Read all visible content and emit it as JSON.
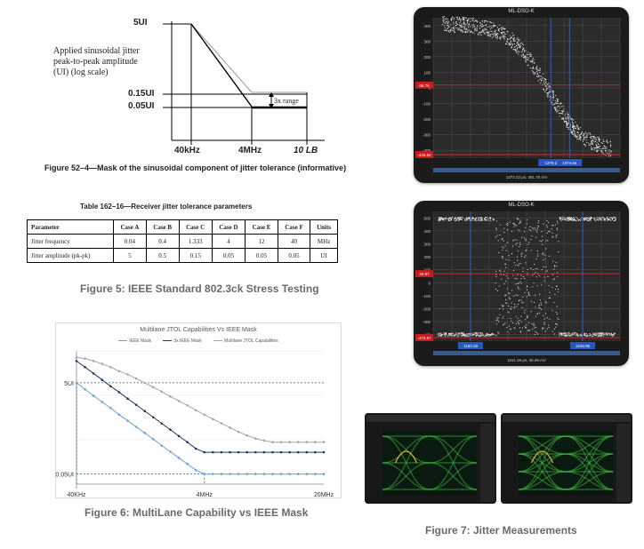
{
  "mask_figure": {
    "ylabel_lines": [
      "Applied sinusoidal jitter",
      "peak-to-peak amplitude",
      "(UI) (log scale)"
    ],
    "y_ticks": [
      "5UI",
      "0.15UI",
      "0.05UI"
    ],
    "x_ticks": [
      "40kHz",
      "4MHz",
      "10 LB"
    ],
    "annotation": "3x range",
    "caption": "Figure 52–4—Mask of the sinusoidal component of jitter tolerance (informative)"
  },
  "table": {
    "title": "Table 162–16—Receiver jitter tolerance parameters",
    "headers": [
      "Parameter",
      "Case A",
      "Case B",
      "Case C",
      "Case D",
      "Case E",
      "Case F",
      "Units"
    ],
    "rows": [
      [
        "Jitter frequency",
        "0.04",
        "0.4",
        "1.333",
        "4",
        "12",
        "40",
        "MHz"
      ],
      [
        "Jitter amplitude (pk-pk)",
        "5",
        "0.5",
        "0.15",
        "0.05",
        "0.05",
        "0.05",
        "UI"
      ]
    ]
  },
  "captions": {
    "fig5": "Figure 5: IEEE Standard 802.3ck Stress Testing",
    "fig6": "Figure 6: MultiLane Capability vs IEEE Mask",
    "fig7": "Figure 7: Jitter Measurements"
  },
  "chart_data": {
    "type": "line",
    "title": "Multilane JTOL Capabilities Vs IEEE Mask",
    "x_tick_labels": [
      "40KHz",
      "4MHz",
      "20MHz"
    ],
    "y_tick_labels": [
      "5UI",
      "0.05UI"
    ],
    "x": [
      1,
      2,
      3,
      4,
      5,
      6,
      7,
      8,
      9,
      10,
      11,
      12,
      13,
      14,
      15,
      16,
      17,
      18,
      19,
      20,
      21,
      22,
      23,
      24,
      25,
      26,
      27,
      28,
      29,
      30
    ],
    "series": [
      {
        "name": "IEEE Mask",
        "color": "#6f9fd8",
        "values": [
          5,
          3.6,
          2.6,
          1.9,
          1.4,
          1.0,
          0.74,
          0.54,
          0.4,
          0.29,
          0.21,
          0.155,
          0.113,
          0.083,
          0.061,
          0.05,
          0.05,
          0.05,
          0.05,
          0.05,
          0.05,
          0.05,
          0.05,
          0.05,
          0.05,
          0.05,
          0.05,
          0.05,
          0.05,
          0.05
        ]
      },
      {
        "name": "3x IEEE Mask",
        "color": "#1f3864",
        "values": [
          15,
          11,
          8,
          5.8,
          4.2,
          3.1,
          2.25,
          1.65,
          1.2,
          0.88,
          0.64,
          0.47,
          0.34,
          0.25,
          0.18,
          0.15,
          0.15,
          0.15,
          0.15,
          0.15,
          0.15,
          0.15,
          0.15,
          0.15,
          0.15,
          0.15,
          0.15,
          0.15,
          0.15,
          0.15
        ]
      },
      {
        "name": "Multilane JTOL Capabilities",
        "color": "#a6a6a6",
        "values": [
          18,
          17,
          15,
          13,
          11,
          9,
          7.6,
          6.2,
          5,
          4,
          3.2,
          2.5,
          2,
          1.6,
          1.25,
          1.0,
          0.8,
          0.65,
          0.52,
          0.42,
          0.35,
          0.3,
          0.27,
          0.25,
          0.25,
          0.25,
          0.25,
          0.25,
          0.25,
          0.25
        ]
      }
    ]
  },
  "scopes": [
    {
      "title": "ML-DSO-K",
      "y_ticks": [
        "400",
        "300",
        "200",
        "100",
        "0",
        "-100",
        "-200",
        "-300",
        "-400"
      ],
      "red_labels": [
        "68.76",
        "-444.60"
      ],
      "blue_labels": [
        "1370.2",
        "1374.54"
      ],
      "footer": "1372.22 ps, 351.75 mV"
    },
    {
      "title": "ML-DSO-K",
      "y_ticks": [
        "500",
        "400",
        "300",
        "200",
        "100",
        "0",
        "-100",
        "-200",
        "-300",
        "-400"
      ],
      "red_labels": [
        "20.97",
        "-472.57"
      ],
      "blue_labels": [
        "1152.28",
        "1245.95"
      ],
      "footer": "1151.45 ps, 45.96 mV"
    }
  ]
}
